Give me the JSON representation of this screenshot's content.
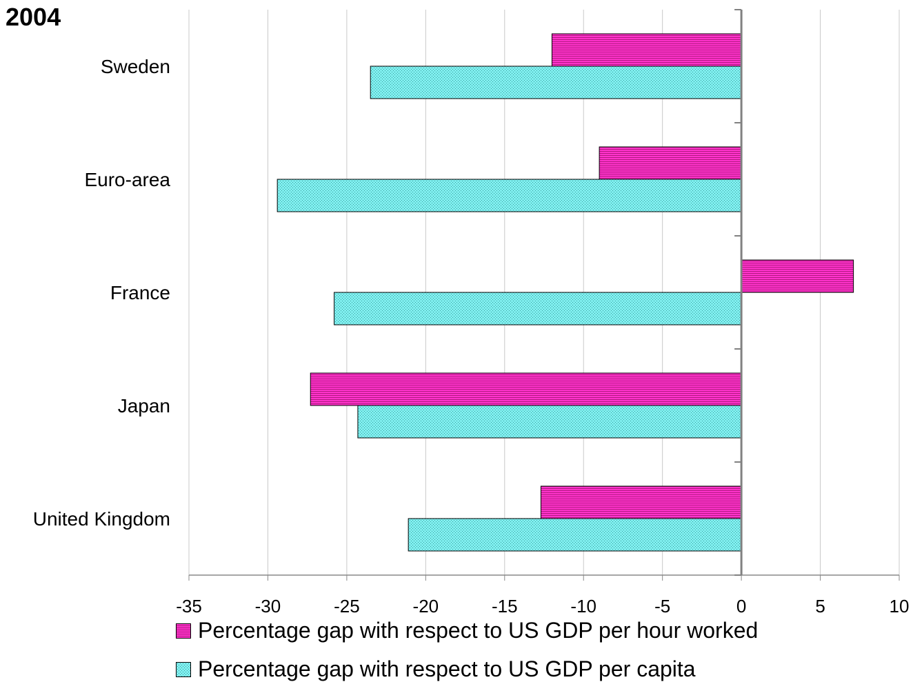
{
  "chart_data": {
    "type": "bar",
    "orientation": "horizontal",
    "title": "2004",
    "categories": [
      "Sweden",
      "Euro-area",
      "France",
      "Japan",
      "United Kingdom"
    ],
    "series": [
      {
        "name": "Percentage gap with respect to US GDP per hour worked",
        "values": [
          -12,
          -9,
          7.1,
          -27.3,
          -12.7
        ],
        "color": "#ff33cc",
        "pattern": "horizontal-stripes"
      },
      {
        "name": "Percentage gap with respect to US GDP per capita",
        "values": [
          -23.5,
          -29.4,
          -25.8,
          -24.3,
          -21.1
        ],
        "color": "#66e6e6",
        "pattern": "dots"
      }
    ],
    "xlim": [
      -35,
      10
    ],
    "xticks": [
      "-35",
      "-30",
      "-25",
      "-20",
      "-15",
      "-10",
      "-5",
      "0",
      "5",
      "10"
    ],
    "grid": true,
    "legend_position": "bottom"
  }
}
